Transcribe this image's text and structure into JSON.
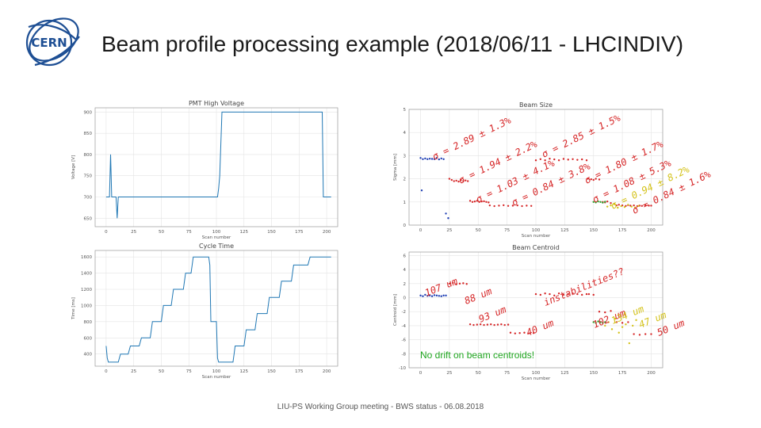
{
  "slide": {
    "title": "Beam profile processing example (2018/06/11 - LHCINDIV)",
    "footer": "LIU-PS Working Group meeting - BWS status - 06.08.2018",
    "logo_text": "CERN"
  },
  "colors": {
    "line": "#1f77b4",
    "blue": "#1f3fb4",
    "red": "#d62728",
    "green": "#2ca02c",
    "yellow": "#d4c21a",
    "note": "#1ea51e"
  },
  "chart_data": [
    {
      "id": "pmt",
      "type": "line",
      "title": "PMT High Voltage",
      "xlabel": "Scan number",
      "ylabel": "Voltage [V]",
      "xlim": [
        -10,
        210
      ],
      "ylim": [
        630,
        910
      ],
      "xticks": [
        0,
        25,
        50,
        75,
        100,
        125,
        150,
        175,
        200
      ],
      "yticks": [
        650,
        700,
        750,
        800,
        850,
        900
      ],
      "series": [
        {
          "name": "PMT HV",
          "x": [
            0,
            1,
            3,
            4,
            5,
            6,
            9,
            10,
            11,
            12,
            13,
            14,
            15,
            101,
            102,
            103,
            105,
            106,
            107,
            196,
            197,
            198,
            204
          ],
          "y": [
            700,
            700,
            700,
            800,
            700,
            700,
            700,
            650,
            700,
            700,
            700,
            700,
            700,
            700,
            720,
            750,
            900,
            900,
            900,
            900,
            700,
            700,
            700
          ]
        }
      ]
    },
    {
      "id": "cycle",
      "type": "line",
      "title": "Cycle Time",
      "xlabel": "Scan number",
      "ylabel": "Time [ms]",
      "xlim": [
        -10,
        210
      ],
      "ylim": [
        250,
        1680
      ],
      "xticks": [
        0,
        25,
        50,
        75,
        100,
        125,
        150,
        175,
        200
      ],
      "yticks": [
        400,
        600,
        800,
        1000,
        1200,
        1400,
        1600
      ],
      "series": [
        {
          "name": "Cycle",
          "x": [
            0,
            1,
            2,
            11,
            12,
            13,
            20,
            21,
            22,
            30,
            31,
            32,
            40,
            41,
            42,
            50,
            51,
            52,
            59,
            60,
            61,
            70,
            71,
            72,
            77,
            78,
            79,
            93,
            94,
            95,
            100,
            101,
            102,
            115,
            116,
            117,
            125,
            126,
            127,
            135,
            136,
            137,
            146,
            147,
            148,
            157,
            158,
            159,
            168,
            169,
            170,
            183,
            184,
            185,
            204
          ],
          "y": [
            500,
            350,
            300,
            300,
            350,
            400,
            400,
            450,
            500,
            500,
            550,
            600,
            600,
            700,
            800,
            800,
            900,
            1000,
            1000,
            1100,
            1200,
            1200,
            1300,
            1400,
            1400,
            1500,
            1600,
            1600,
            1500,
            800,
            800,
            350,
            300,
            300,
            400,
            500,
            500,
            600,
            700,
            700,
            800,
            900,
            900,
            1000,
            1100,
            1100,
            1200,
            1300,
            1300,
            1400,
            1500,
            1500,
            1550,
            1600,
            1600
          ]
        }
      ]
    },
    {
      "id": "size",
      "type": "scatter",
      "title": "Beam Size",
      "xlabel": "Scan number",
      "ylabel": "Sigma [mm]",
      "xlim": [
        -10,
        210
      ],
      "ylim": [
        0,
        5
      ],
      "xticks": [
        0,
        25,
        50,
        75,
        100,
        125,
        150,
        175,
        200
      ],
      "yticks": [
        0,
        1,
        2,
        3,
        4,
        5
      ],
      "series": [
        {
          "name": "blue",
          "color": "blue",
          "x": [
            0,
            2,
            4,
            6,
            8,
            10,
            12,
            14,
            16,
            18,
            20,
            1,
            22,
            24
          ],
          "y": [
            2.9,
            2.85,
            2.88,
            2.85,
            2.87,
            2.86,
            2.85,
            2.9,
            2.84,
            2.88,
            2.85,
            1.5,
            0.5,
            0.3
          ]
        },
        {
          "name": "red-1",
          "color": "red",
          "x": [
            25,
            27,
            29,
            31,
            33,
            35,
            37,
            39,
            41,
            43,
            45,
            47,
            49,
            51,
            53,
            55,
            57,
            59
          ],
          "y": [
            2.0,
            1.95,
            1.9,
            1.92,
            1.88,
            1.95,
            1.9,
            1.93,
            1.9,
            1.05,
            1.0,
            1.02,
            1.05,
            1.0,
            1.02,
            1.03,
            1.0,
            0.98
          ]
        },
        {
          "name": "red-2",
          "color": "red",
          "x": [
            60,
            64,
            68,
            72,
            76,
            80,
            84,
            88,
            92,
            96,
            100,
            104,
            108,
            112,
            116,
            120,
            124,
            128,
            132,
            136,
            140,
            144
          ],
          "y": [
            0.85,
            0.82,
            0.84,
            0.86,
            0.83,
            0.84,
            0.85,
            0.82,
            0.84,
            0.83,
            2.8,
            2.85,
            2.8,
            2.87,
            2.84,
            2.8,
            2.86,
            2.83,
            2.85,
            2.82,
            2.84,
            2.8
          ]
        },
        {
          "name": "red-3",
          "color": "red",
          "x": [
            145,
            148,
            150,
            152,
            155,
            158,
            160,
            162,
            165,
            168,
            170,
            172,
            175,
            178,
            180,
            182,
            185,
            188,
            190,
            192,
            195,
            198,
            200
          ],
          "y": [
            2.0,
            1.98,
            1.95,
            2.0,
            1.97,
            1.0,
            0.98,
            1.02,
            0.95,
            0.92,
            0.85,
            0.88,
            0.85,
            0.83,
            0.86,
            0.84,
            0.85,
            0.82,
            0.84,
            0.83,
            0.85,
            0.84,
            0.84
          ]
        },
        {
          "name": "green",
          "color": "green",
          "x": [
            150,
            152,
            154,
            156,
            158,
            160
          ],
          "y": [
            1.0,
            0.98,
            1.02,
            1.0,
            0.97,
            1.01
          ]
        },
        {
          "name": "yellow",
          "color": "yellow",
          "x": [
            162,
            165,
            168,
            171,
            174,
            177,
            180,
            183,
            186,
            189
          ],
          "y": [
            0.8,
            0.85,
            0.9,
            0.75,
            0.82,
            0.78,
            0.88,
            0.8,
            0.76,
            0.83
          ]
        }
      ],
      "annotations": [
        {
          "text": "σ = 2.89 ± 1.3%",
          "color": "red"
        },
        {
          "text": "σ = 1.94 ± 2.2%",
          "color": "red"
        },
        {
          "text": "σ = 1.03 ± 4.1%",
          "color": "red"
        },
        {
          "text": "σ = 0.84 ± 3.8%",
          "color": "red"
        },
        {
          "text": "σ = 2.85 ± 1.5%",
          "color": "red"
        },
        {
          "text": "σ = 1.80 ± 1.7%",
          "color": "red"
        },
        {
          "text": "σ = 1.08 ± 5.3%",
          "color": "red"
        },
        {
          "text": "σ = 0.94 ± 8.2%",
          "color": "yellow"
        },
        {
          "text": "σ = 0.84 ± 1.6%",
          "color": "red"
        }
      ]
    },
    {
      "id": "centroid",
      "type": "scatter",
      "title": "Beam Centroid",
      "xlabel": "Scan number",
      "ylabel": "Centroid [mm]",
      "xlim": [
        -10,
        210
      ],
      "ylim": [
        -10,
        6.5
      ],
      "xticks": [
        0,
        25,
        50,
        75,
        100,
        125,
        150,
        175,
        200
      ],
      "yticks": [
        -10,
        -8,
        -6,
        -4,
        -2,
        0,
        2,
        4,
        6
      ],
      "series": [
        {
          "name": "blue",
          "color": "blue",
          "x": [
            0,
            2,
            4,
            6,
            8,
            10,
            12,
            14,
            16,
            18,
            20,
            22
          ],
          "y": [
            0.3,
            0.2,
            0.4,
            0.25,
            0.3,
            0.2,
            0.35,
            0.3,
            0.25,
            0.2,
            0.3,
            0.3
          ]
        },
        {
          "name": "red-1",
          "color": "red",
          "x": [
            25,
            28,
            31,
            34,
            37,
            40,
            43,
            46,
            49,
            52,
            55,
            58,
            61,
            64,
            67,
            70,
            73,
            76
          ],
          "y": [
            2.0,
            2.1,
            1.9,
            2.0,
            2.05,
            1.95,
            -3.8,
            -3.9,
            -3.85,
            -3.8,
            -3.9,
            -3.85,
            -3.8,
            -3.9,
            -3.85,
            -3.8,
            -3.9,
            -3.85
          ]
        },
        {
          "name": "red-2",
          "color": "red",
          "x": [
            78,
            82,
            86,
            90,
            94,
            98,
            100,
            104,
            108,
            112,
            116,
            120,
            124,
            128,
            132,
            136,
            140,
            144
          ],
          "y": [
            -5.0,
            -5.1,
            -5.05,
            -5.0,
            -5.1,
            -5.05,
            0.5,
            0.4,
            0.6,
            0.5,
            0.3,
            0.6,
            0.4,
            0.5,
            0.6,
            0.5,
            0.4,
            0.5
          ]
        },
        {
          "name": "red-3",
          "color": "red",
          "x": [
            146,
            150,
            155,
            160,
            165,
            170,
            175,
            180,
            185,
            190,
            195,
            200
          ],
          "y": [
            0.5,
            0.4,
            -2.0,
            -2.1,
            -1.9,
            -3.5,
            -3.6,
            -3.5,
            -5.2,
            -5.3,
            -5.2,
            -5.2
          ]
        },
        {
          "name": "green",
          "color": "green",
          "x": [
            150,
            152,
            154,
            156,
            158,
            160
          ],
          "y": [
            -3.5,
            -3.6,
            -3.4,
            -3.5,
            -3.6,
            -3.5
          ]
        },
        {
          "name": "yellow",
          "color": "yellow",
          "x": [
            160,
            163,
            166,
            169,
            172,
            175,
            178,
            181,
            184,
            187
          ],
          "y": [
            -4.0,
            -3.5,
            -4.5,
            -3.0,
            -5.0,
            -4.2,
            -3.8,
            -6.5,
            -4.0,
            -3.2
          ]
        }
      ],
      "annotations": [
        {
          "text": "107 um",
          "color": "red"
        },
        {
          "text": "88 um",
          "color": "red"
        },
        {
          "text": "93 um",
          "color": "red"
        },
        {
          "text": "40 um",
          "color": "red"
        },
        {
          "text": "instabilities??",
          "color": "red"
        },
        {
          "text": "102 um",
          "color": "red"
        },
        {
          "text": "134 um",
          "color": "yellow"
        },
        {
          "text": "47 um",
          "color": "yellow"
        },
        {
          "text": "50 um",
          "color": "red"
        }
      ],
      "note": "No drift on beam centroids!"
    }
  ]
}
